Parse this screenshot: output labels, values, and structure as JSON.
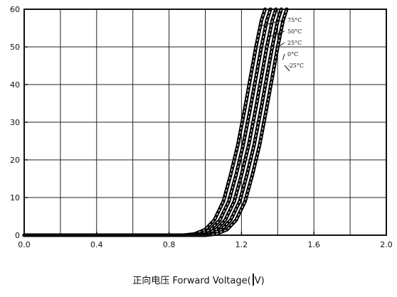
{
  "chart_data": {
    "type": "line",
    "title": "",
    "xlabel": "正向电压  Forward Voltage(V)",
    "ylabel": "",
    "xlim": [
      0.0,
      2.0
    ],
    "ylim": [
      0,
      60
    ],
    "x_ticks": [
      "0.0",
      "0.4",
      "0.8",
      "1.2",
      "1.6",
      "2.0"
    ],
    "x_minor_ticks": [
      0.2,
      0.6,
      1.0,
      1.4,
      1.8
    ],
    "y_ticks": [
      "0",
      "10",
      "20",
      "30",
      "40",
      "50",
      "60"
    ],
    "grid": true,
    "series": [
      {
        "name": "75°C",
        "x": [
          0.0,
          0.88,
          0.94,
          1.0,
          1.05,
          1.1,
          1.14,
          1.18,
          1.22,
          1.25,
          1.28,
          1.31,
          1.33
        ],
        "y": [
          0,
          0,
          0.3,
          1.5,
          4,
          9,
          16,
          24,
          34,
          42,
          50,
          57,
          60
        ]
      },
      {
        "name": "50°C",
        "x": [
          0.0,
          0.91,
          0.97,
          1.03,
          1.08,
          1.13,
          1.17,
          1.21,
          1.25,
          1.28,
          1.31,
          1.34,
          1.36
        ],
        "y": [
          0,
          0,
          0.3,
          1.5,
          4,
          9,
          16,
          24,
          34,
          42,
          50,
          57,
          60
        ]
      },
      {
        "name": "25°C",
        "x": [
          0.0,
          0.94,
          1.0,
          1.06,
          1.11,
          1.16,
          1.2,
          1.24,
          1.28,
          1.31,
          1.34,
          1.37,
          1.39
        ],
        "y": [
          0,
          0,
          0.3,
          1.5,
          4,
          9,
          16,
          24,
          34,
          42,
          50,
          57,
          60
        ]
      },
      {
        "name": "0°C",
        "x": [
          0.0,
          0.97,
          1.03,
          1.09,
          1.14,
          1.19,
          1.23,
          1.27,
          1.31,
          1.34,
          1.37,
          1.4,
          1.42
        ],
        "y": [
          0,
          0,
          0.3,
          1.5,
          4,
          9,
          16,
          24,
          34,
          42,
          50,
          57,
          60
        ]
      },
      {
        "name": "-25°C",
        "x": [
          0.0,
          1.0,
          1.06,
          1.12,
          1.17,
          1.22,
          1.26,
          1.3,
          1.34,
          1.37,
          1.4,
          1.43,
          1.45
        ],
        "y": [
          0,
          0,
          0.3,
          1.5,
          4,
          9,
          16,
          24,
          34,
          42,
          50,
          57,
          60
        ]
      }
    ]
  }
}
